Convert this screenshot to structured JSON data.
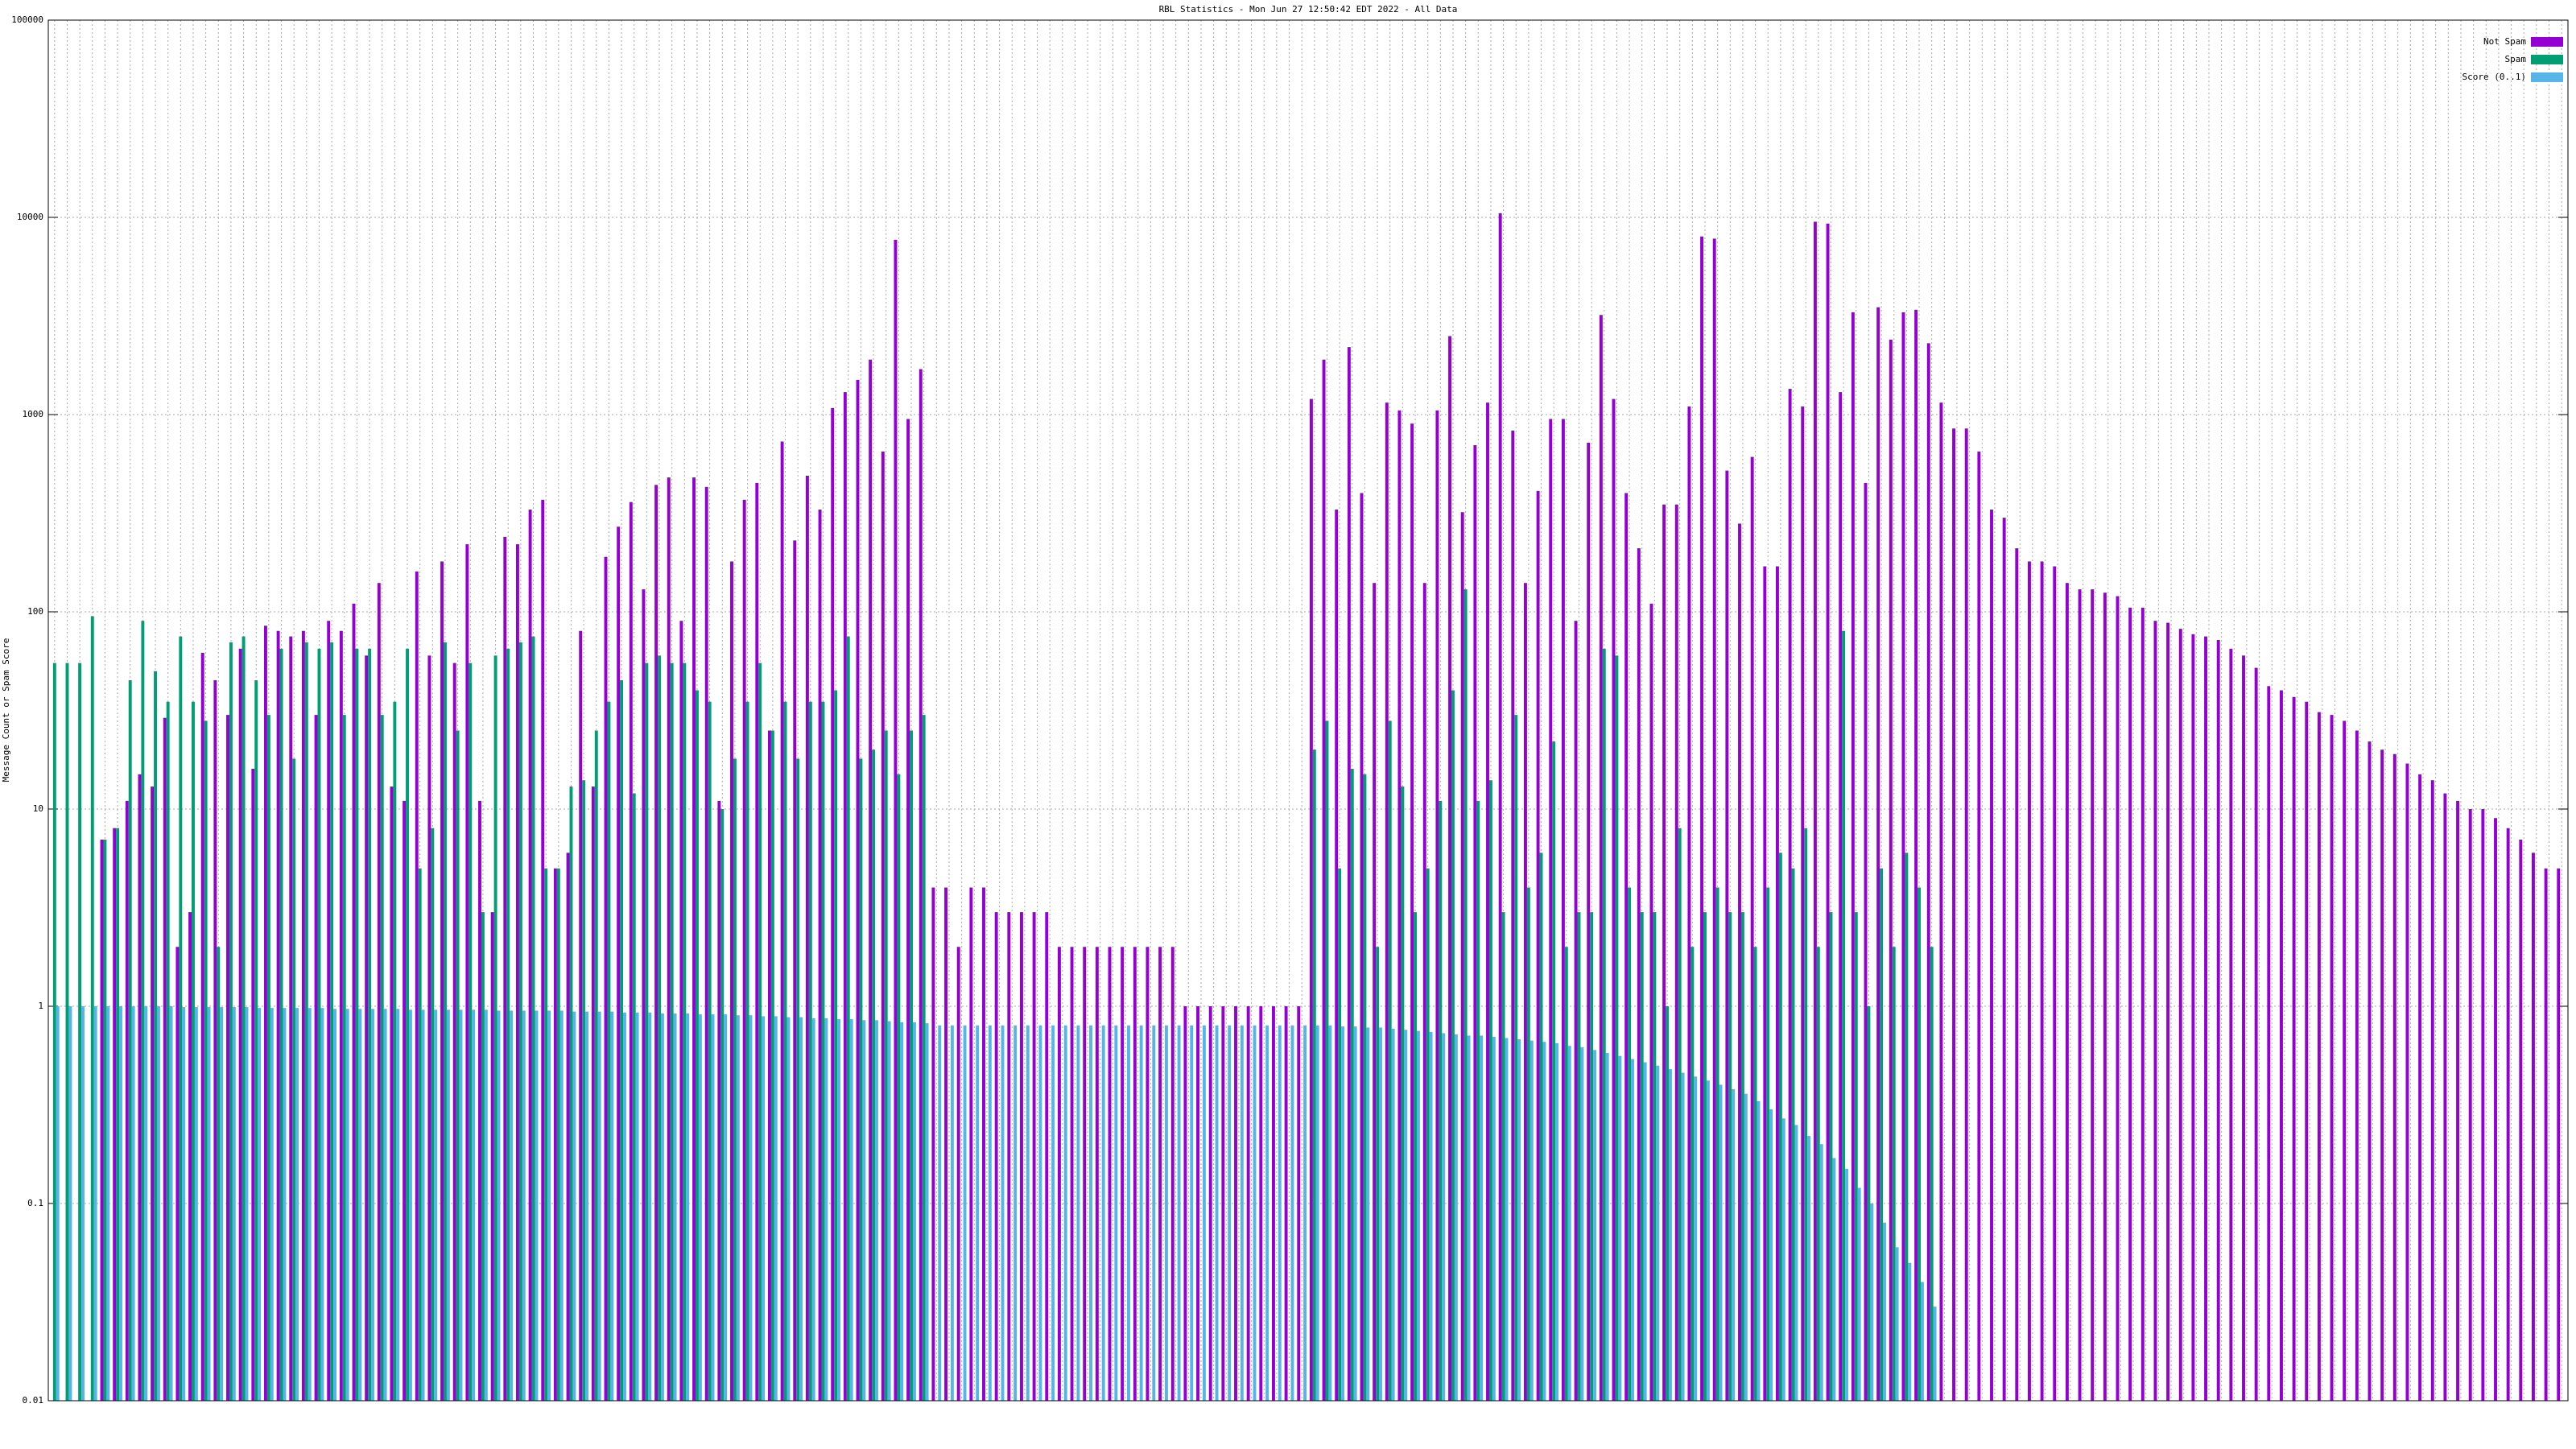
{
  "chart_data": {
    "type": "bar",
    "title": "RBL Statistics - Mon Jun 27 12:50:42 EDT 2022 - All Data",
    "y_label": "Message Count or Spam Score",
    "log_scale": true,
    "grid": true,
    "legend": "top-right",
    "ylim": [
      0.01,
      100000
    ],
    "yticks": [
      0.01,
      0.1,
      1,
      10,
      100,
      1000,
      10000,
      100000
    ],
    "categories": [
      null,
      null,
      null,
      null,
      null,
      null,
      null,
      null,
      null,
      null,
      null,
      null,
      null,
      null,
      null,
      null,
      null,
      null,
      null,
      null,
      null,
      null,
      null,
      null,
      null,
      null,
      null,
      null,
      null,
      null,
      null,
      null,
      null,
      null,
      null,
      null,
      null,
      null,
      null,
      null,
      null,
      null,
      null,
      null,
      null,
      null,
      null,
      null,
      null,
      null,
      null,
      null,
      null,
      null,
      null,
      null,
      null,
      null,
      null,
      null,
      null,
      null,
      null,
      null,
      null,
      null,
      null,
      null,
      null,
      null,
      null,
      null,
      null,
      null,
      null,
      null,
      null,
      null,
      null,
      null,
      null,
      null,
      null,
      null,
      null,
      null,
      null,
      null,
      null,
      null,
      null,
      null,
      null,
      null,
      null,
      null,
      null,
      null,
      null,
      null,
      null,
      null,
      null,
      null,
      null,
      null,
      null,
      null,
      null,
      null,
      null,
      null,
      null,
      null,
      null,
      null,
      null,
      null,
      null,
      null,
      null,
      null,
      null,
      null,
      null,
      null,
      null,
      null,
      null,
      null,
      null,
      null,
      null,
      null,
      null,
      null,
      null,
      null,
      null,
      null,
      null,
      null,
      null,
      null,
      null,
      null,
      null,
      null,
      null,
      null,
      null,
      null,
      null,
      null,
      null,
      null,
      null,
      null,
      null,
      null,
      null,
      null,
      null,
      null,
      null,
      null,
      null,
      null,
      null,
      null,
      null,
      null,
      null,
      null,
      null,
      null,
      null,
      null,
      null,
      null,
      null,
      null,
      null,
      null,
      null,
      null,
      null,
      null,
      null,
      null,
      null,
      null,
      null,
      null,
      null,
      null,
      null,
      null,
      null,
      null
    ],
    "series": [
      {
        "name": "Not Spam",
        "color": "#9400d3",
        "values": [
          null,
          null,
          null,
          null,
          7,
          8,
          11,
          15,
          13,
          29,
          2,
          3,
          62,
          45,
          30,
          65,
          16,
          85,
          80,
          75,
          80,
          30,
          90,
          80,
          110,
          60,
          140,
          13,
          11,
          160,
          60,
          180,
          55,
          220,
          11,
          3,
          240,
          220,
          330,
          370,
          5,
          6,
          80,
          13,
          190,
          270,
          360,
          130,
          440,
          480,
          90,
          480,
          430,
          11,
          180,
          370,
          450,
          25,
          730,
          230,
          490,
          330,
          1080,
          1300,
          1500,
          1900,
          650,
          7700,
          950,
          1700,
          4,
          4,
          2,
          4,
          4,
          3,
          3,
          3,
          3,
          3,
          2,
          2,
          2,
          2,
          2,
          2,
          2,
          2,
          2,
          2,
          1,
          1,
          1,
          1,
          1,
          1,
          1,
          1,
          1,
          1,
          1200,
          1900,
          330,
          2200,
          400,
          140,
          1150,
          1050,
          900,
          140,
          1050,
          2500,
          320,
          700,
          1150,
          10500,
          830,
          140,
          410,
          950,
          950,
          90,
          720,
          3200,
          1200,
          400,
          210,
          110,
          350,
          350,
          1100,
          8000,
          7800,
          520,
          280,
          610,
          170,
          170,
          1350,
          1100,
          9500,
          9300,
          1300,
          3300,
          450,
          3500,
          2400,
          3300,
          3400,
          2300,
          1150,
          850,
          850,
          650,
          330,
          300,
          210,
          180,
          180,
          170,
          140,
          130,
          130,
          125,
          120,
          105,
          105,
          90,
          88,
          82,
          77,
          75,
          72,
          65,
          60,
          52,
          42,
          40,
          37,
          35,
          31,
          30,
          28,
          25,
          22,
          20,
          19,
          17,
          15,
          14,
          12,
          11,
          10,
          10,
          9,
          8,
          7,
          6,
          5,
          5
        ]
      },
      {
        "name": "Spam",
        "color": "#009e73",
        "values": [
          55,
          55,
          55,
          95,
          7,
          8,
          45,
          90,
          50,
          35,
          75,
          35,
          28,
          2,
          70,
          75,
          45,
          30,
          65,
          18,
          70,
          65,
          70,
          30,
          65,
          65,
          30,
          35,
          65,
          5,
          8,
          70,
          25,
          55,
          3,
          60,
          65,
          70,
          75,
          5,
          5,
          13,
          14,
          25,
          35,
          45,
          12,
          55,
          60,
          55,
          55,
          40,
          35,
          10,
          18,
          35,
          55,
          25,
          35,
          18,
          35,
          35,
          40,
          75,
          18,
          20,
          25,
          15,
          25,
          30,
          null,
          null,
          null,
          null,
          null,
          null,
          null,
          null,
          null,
          null,
          null,
          null,
          null,
          null,
          null,
          null,
          null,
          null,
          null,
          null,
          null,
          null,
          null,
          null,
          null,
          null,
          null,
          null,
          null,
          null,
          20,
          28,
          5,
          16,
          15,
          2,
          28,
          13,
          3,
          5,
          11,
          40,
          130,
          11,
          14,
          3,
          30,
          4,
          6,
          22,
          2,
          3,
          3,
          65,
          60,
          4,
          3,
          3,
          1,
          8,
          2,
          3,
          4,
          3,
          3,
          2,
          4,
          6,
          5,
          8,
          2,
          3,
          80,
          3,
          1,
          5,
          2,
          6,
          4,
          2,
          null,
          null,
          null,
          null,
          null,
          null,
          null,
          null,
          null,
          null,
          null,
          null,
          null,
          null,
          null,
          null,
          null,
          null,
          null,
          null,
          null,
          null,
          null,
          null,
          null,
          null,
          null,
          null,
          null,
          null,
          null,
          null,
          null,
          null,
          null,
          null,
          null,
          null,
          null,
          null,
          null,
          null,
          null,
          null,
          null,
          null,
          null,
          null,
          null,
          null
        ]
      },
      {
        "name": "Score (0..1)",
        "color": "#56b4e9",
        "values": [
          1,
          1,
          1,
          1,
          1,
          1,
          1,
          1,
          1,
          1,
          0.99,
          0.99,
          0.99,
          0.99,
          0.99,
          0.99,
          0.98,
          0.98,
          0.98,
          0.98,
          0.98,
          0.98,
          0.97,
          0.97,
          0.97,
          0.97,
          0.97,
          0.97,
          0.96,
          0.96,
          0.96,
          0.96,
          0.96,
          0.96,
          0.96,
          0.95,
          0.95,
          0.95,
          0.95,
          0.95,
          0.95,
          0.94,
          0.94,
          0.94,
          0.94,
          0.93,
          0.93,
          0.93,
          0.92,
          0.92,
          0.92,
          0.91,
          0.91,
          0.91,
          0.9,
          0.9,
          0.89,
          0.89,
          0.88,
          0.88,
          0.87,
          0.87,
          0.86,
          0.86,
          0.85,
          0.85,
          0.84,
          0.83,
          0.83,
          0.82,
          0.8,
          0.8,
          0.8,
          0.8,
          0.8,
          0.8,
          0.8,
          0.8,
          0.8,
          0.8,
          0.8,
          0.8,
          0.8,
          0.8,
          0.8,
          0.8,
          0.8,
          0.8,
          0.8,
          0.8,
          0.8,
          0.8,
          0.8,
          0.8,
          0.8,
          0.8,
          0.8,
          0.8,
          0.8,
          0.8,
          0.8,
          0.8,
          0.79,
          0.79,
          0.78,
          0.78,
          0.77,
          0.76,
          0.75,
          0.74,
          0.73,
          0.72,
          0.71,
          0.71,
          0.7,
          0.69,
          0.68,
          0.67,
          0.66,
          0.65,
          0.63,
          0.62,
          0.6,
          0.58,
          0.56,
          0.54,
          0.52,
          0.5,
          0.48,
          0.46,
          0.44,
          0.42,
          0.4,
          0.38,
          0.36,
          0.33,
          0.3,
          0.27,
          0.25,
          0.22,
          0.2,
          0.17,
          0.15,
          0.12,
          0.1,
          0.08,
          0.06,
          0.05,
          0.04,
          0.03,
          null,
          null,
          null,
          null,
          null,
          null,
          null,
          null,
          null,
          null,
          null,
          null,
          null,
          null,
          null,
          null,
          null,
          null,
          null,
          null,
          null,
          null,
          null,
          null,
          null,
          null,
          null,
          null,
          null,
          null,
          null,
          null,
          null,
          null,
          null,
          null,
          null,
          null,
          null,
          null,
          null,
          null,
          null,
          null,
          null,
          null,
          null,
          null,
          null,
          null
        ]
      }
    ]
  }
}
